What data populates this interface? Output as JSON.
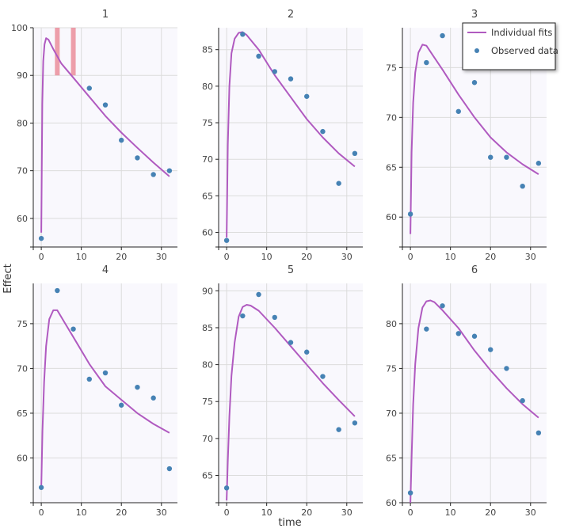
{
  "colors": {
    "fit": "#b05ac0",
    "observed": "#4682b4",
    "highlight": "#e8808e",
    "panel_bg": "#f9f8fd",
    "grid": "#dcdcdc"
  },
  "chart_data": {
    "type": "line",
    "xlabel": "time",
    "ylabel": "Effect",
    "legend": {
      "position": "top-right",
      "entries": [
        {
          "label": "Individual fits",
          "kind": "line"
        },
        {
          "label": "Observed data",
          "kind": "marker"
        }
      ]
    },
    "grid": true,
    "panels": [
      {
        "title": "1",
        "xlim": [
          -2,
          34
        ],
        "ylim": [
          54,
          100
        ],
        "xticks": [
          0,
          10,
          20,
          30
        ],
        "yticks": [
          60,
          70,
          80,
          90,
          100
        ],
        "highlights": [
          {
            "x": 4,
            "y": [
              90,
              100
            ]
          },
          {
            "x": 8,
            "y": [
              90,
              100
            ]
          }
        ],
        "observed": {
          "x": [
            0,
            12,
            16,
            20,
            24,
            28,
            32
          ],
          "y": [
            55.8,
            87.3,
            83.8,
            76.4,
            72.7,
            69.2,
            70.0
          ]
        },
        "fit": {
          "x": [
            0,
            0.25,
            0.5,
            0.8,
            1.2,
            1.8,
            3,
            5,
            8,
            12,
            16,
            20,
            24,
            28,
            32
          ],
          "y": [
            57,
            84,
            93,
            96.5,
            97.8,
            97.5,
            95.5,
            92.5,
            89.5,
            85.5,
            81.5,
            78,
            74.8,
            71.7,
            68.8
          ]
        }
      },
      {
        "title": "2",
        "xlim": [
          -2,
          34
        ],
        "ylim": [
          58,
          88
        ],
        "xticks": [
          0,
          10,
          20,
          30
        ],
        "yticks": [
          60,
          65,
          70,
          75,
          80,
          85
        ],
        "observed": {
          "x": [
            0,
            4,
            8,
            12,
            16,
            20,
            24,
            28,
            32
          ],
          "y": [
            58.9,
            87.1,
            84.1,
            82.0,
            81.0,
            78.6,
            73.8,
            66.7,
            70.8
          ]
        },
        "fit": {
          "x": [
            0,
            0.3,
            0.7,
            1.2,
            2,
            3,
            4,
            5,
            8,
            12,
            16,
            20,
            24,
            28,
            32
          ],
          "y": [
            59.3,
            72,
            80,
            84.5,
            86.5,
            87.3,
            87.4,
            87,
            85,
            81.5,
            78.5,
            75.5,
            73,
            70.8,
            69
          ]
        }
      },
      {
        "title": "3",
        "xlim": [
          -2,
          34
        ],
        "ylim": [
          57,
          79
        ],
        "xticks": [
          0,
          10,
          20,
          30
        ],
        "yticks": [
          60,
          65,
          70,
          75
        ],
        "observed": {
          "x": [
            0,
            4,
            8,
            12,
            16,
            20,
            24,
            28,
            32
          ],
          "y": [
            60.3,
            75.5,
            78.2,
            70.6,
            73.5,
            66.0,
            66.0,
            63.1,
            65.4
          ]
        },
        "fit": {
          "x": [
            0,
            0.3,
            0.7,
            1.2,
            2,
            3,
            4,
            6,
            8,
            12,
            16,
            20,
            24,
            28,
            32
          ],
          "y": [
            58.3,
            66.5,
            71.5,
            74.5,
            76.5,
            77.3,
            77.2,
            76,
            74.8,
            72.3,
            70,
            68,
            66.5,
            65.3,
            64.3
          ]
        }
      },
      {
        "title": "4",
        "xlim": [
          -2,
          34
        ],
        "ylim": [
          55,
          79.5
        ],
        "xticks": [
          0,
          10,
          20,
          30
        ],
        "yticks": [
          60,
          65,
          70,
          75
        ],
        "observed": {
          "x": [
            0,
            4,
            8,
            12,
            16,
            20,
            24,
            28,
            32
          ],
          "y": [
            56.7,
            78.7,
            74.4,
            68.8,
            69.5,
            65.9,
            67.9,
            66.7,
            58.8
          ]
        },
        "fit": {
          "x": [
            0,
            0.3,
            0.7,
            1.2,
            2,
            3,
            4,
            6,
            8,
            12,
            16,
            20,
            24,
            28,
            32
          ],
          "y": [
            56.7,
            63,
            68.5,
            72.5,
            75.5,
            76.5,
            76.5,
            75,
            73.5,
            70.5,
            68,
            66.5,
            65,
            63.8,
            62.8
          ]
        }
      },
      {
        "title": "5",
        "xlim": [
          -2,
          34
        ],
        "ylim": [
          61.3,
          91
        ],
        "xticks": [
          0,
          10,
          20,
          30
        ],
        "yticks": [
          65,
          70,
          75,
          80,
          85,
          90
        ],
        "observed": {
          "x": [
            0,
            4,
            8,
            12,
            16,
            20,
            24,
            28,
            32
          ],
          "y": [
            63.3,
            86.6,
            89.5,
            86.4,
            83.0,
            81.7,
            78.4,
            71.2,
            72.1
          ]
        },
        "fit": {
          "x": [
            0,
            0.3,
            0.7,
            1.2,
            2,
            3,
            4,
            5,
            6,
            8,
            12,
            16,
            20,
            24,
            28,
            32
          ],
          "y": [
            61.6,
            67,
            73,
            78.5,
            83,
            86.5,
            87.8,
            88.1,
            88,
            87.3,
            85,
            82.5,
            80,
            77.5,
            75.2,
            73
          ]
        }
      },
      {
        "title": "6",
        "xlim": [
          -2,
          34
        ],
        "ylim": [
          60,
          84.5
        ],
        "xticks": [
          0,
          10,
          20,
          30
        ],
        "yticks": [
          60,
          65,
          70,
          75,
          80
        ],
        "observed": {
          "x": [
            0,
            4,
            8,
            12,
            16,
            20,
            24,
            28,
            32
          ],
          "y": [
            61.1,
            79.4,
            82.0,
            78.9,
            78.6,
            77.1,
            75.0,
            71.4,
            67.8
          ]
        },
        "fit": {
          "x": [
            0,
            0.3,
            0.7,
            1.2,
            2,
            3,
            4,
            5,
            6,
            8,
            12,
            16,
            20,
            24,
            28,
            32
          ],
          "y": [
            60,
            65,
            71,
            75.5,
            79.5,
            81.8,
            82.5,
            82.6,
            82.4,
            81.5,
            79.5,
            77,
            74.8,
            72.8,
            71,
            69.5
          ]
        }
      }
    ]
  }
}
